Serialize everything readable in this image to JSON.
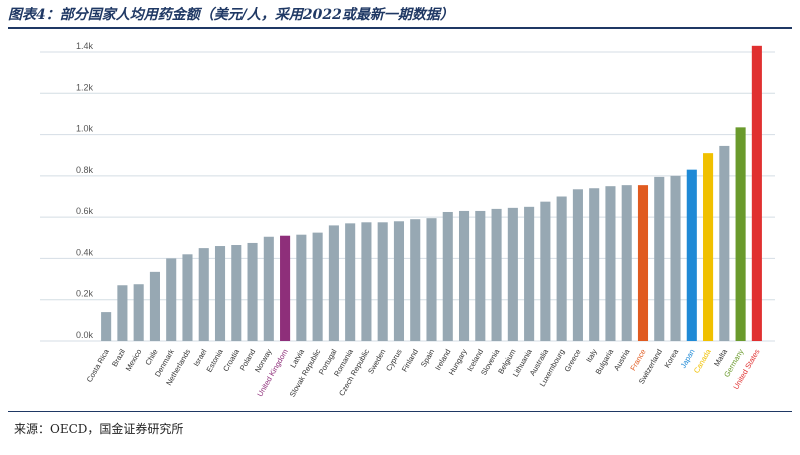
{
  "header": {
    "title": "图表4：部分国家人均用药金额（美元/人，采用2022或最新一期数据）"
  },
  "footer": {
    "source": "来源：OECD，国金证券研究所"
  },
  "colors": {
    "default_bar": "#97a8b3",
    "grid": "#d4dde4",
    "tick_text": "#555555",
    "label_text": "#333333",
    "rule": "#1f3864"
  },
  "chart_data": {
    "type": "bar",
    "categories": [
      "Costa Rica",
      "Brazil",
      "Mexico",
      "Chile",
      "Denmark",
      "Netherlands",
      "Israel",
      "Estonia",
      "Croatia",
      "Poland",
      "Norway",
      "United Kingdom",
      "Latvia",
      "Slovak Republic",
      "Portugal",
      "Romania",
      "Czech Republic",
      "Sweden",
      "Cyprus",
      "Finland",
      "Spain",
      "Ireland",
      "Hungary",
      "Iceland",
      "Slovenia",
      "Belgium",
      "Lithuania",
      "Australia",
      "Luxembourg",
      "Greece",
      "Italy",
      "Bulgaria",
      "Austria",
      "France",
      "Switzerland",
      "Korea",
      "Japan",
      "Canada",
      "Malta",
      "Germany",
      "United States"
    ],
    "values": [
      140,
      270,
      275,
      335,
      400,
      420,
      450,
      460,
      465,
      475,
      505,
      510,
      515,
      525,
      560,
      570,
      575,
      575,
      580,
      590,
      595,
      625,
      630,
      630,
      640,
      645,
      650,
      675,
      700,
      735,
      740,
      750,
      755,
      755,
      795,
      800,
      830,
      910,
      945,
      1035,
      1430
    ],
    "highlight_colors": {
      "United Kingdom": "#8e2f7a",
      "France": "#e05a1f",
      "Japan": "#1f8ad6",
      "Canada": "#f0c000",
      "Germany": "#6a9a2c",
      "United States": "#e03030"
    },
    "y_ticks": [
      "0.0k",
      "0.2k",
      "0.4k",
      "0.6k",
      "0.8k",
      "1.0k",
      "1.2k",
      "1.4k"
    ],
    "ylim": [
      0,
      1500
    ],
    "grid": true,
    "legend": "none"
  }
}
